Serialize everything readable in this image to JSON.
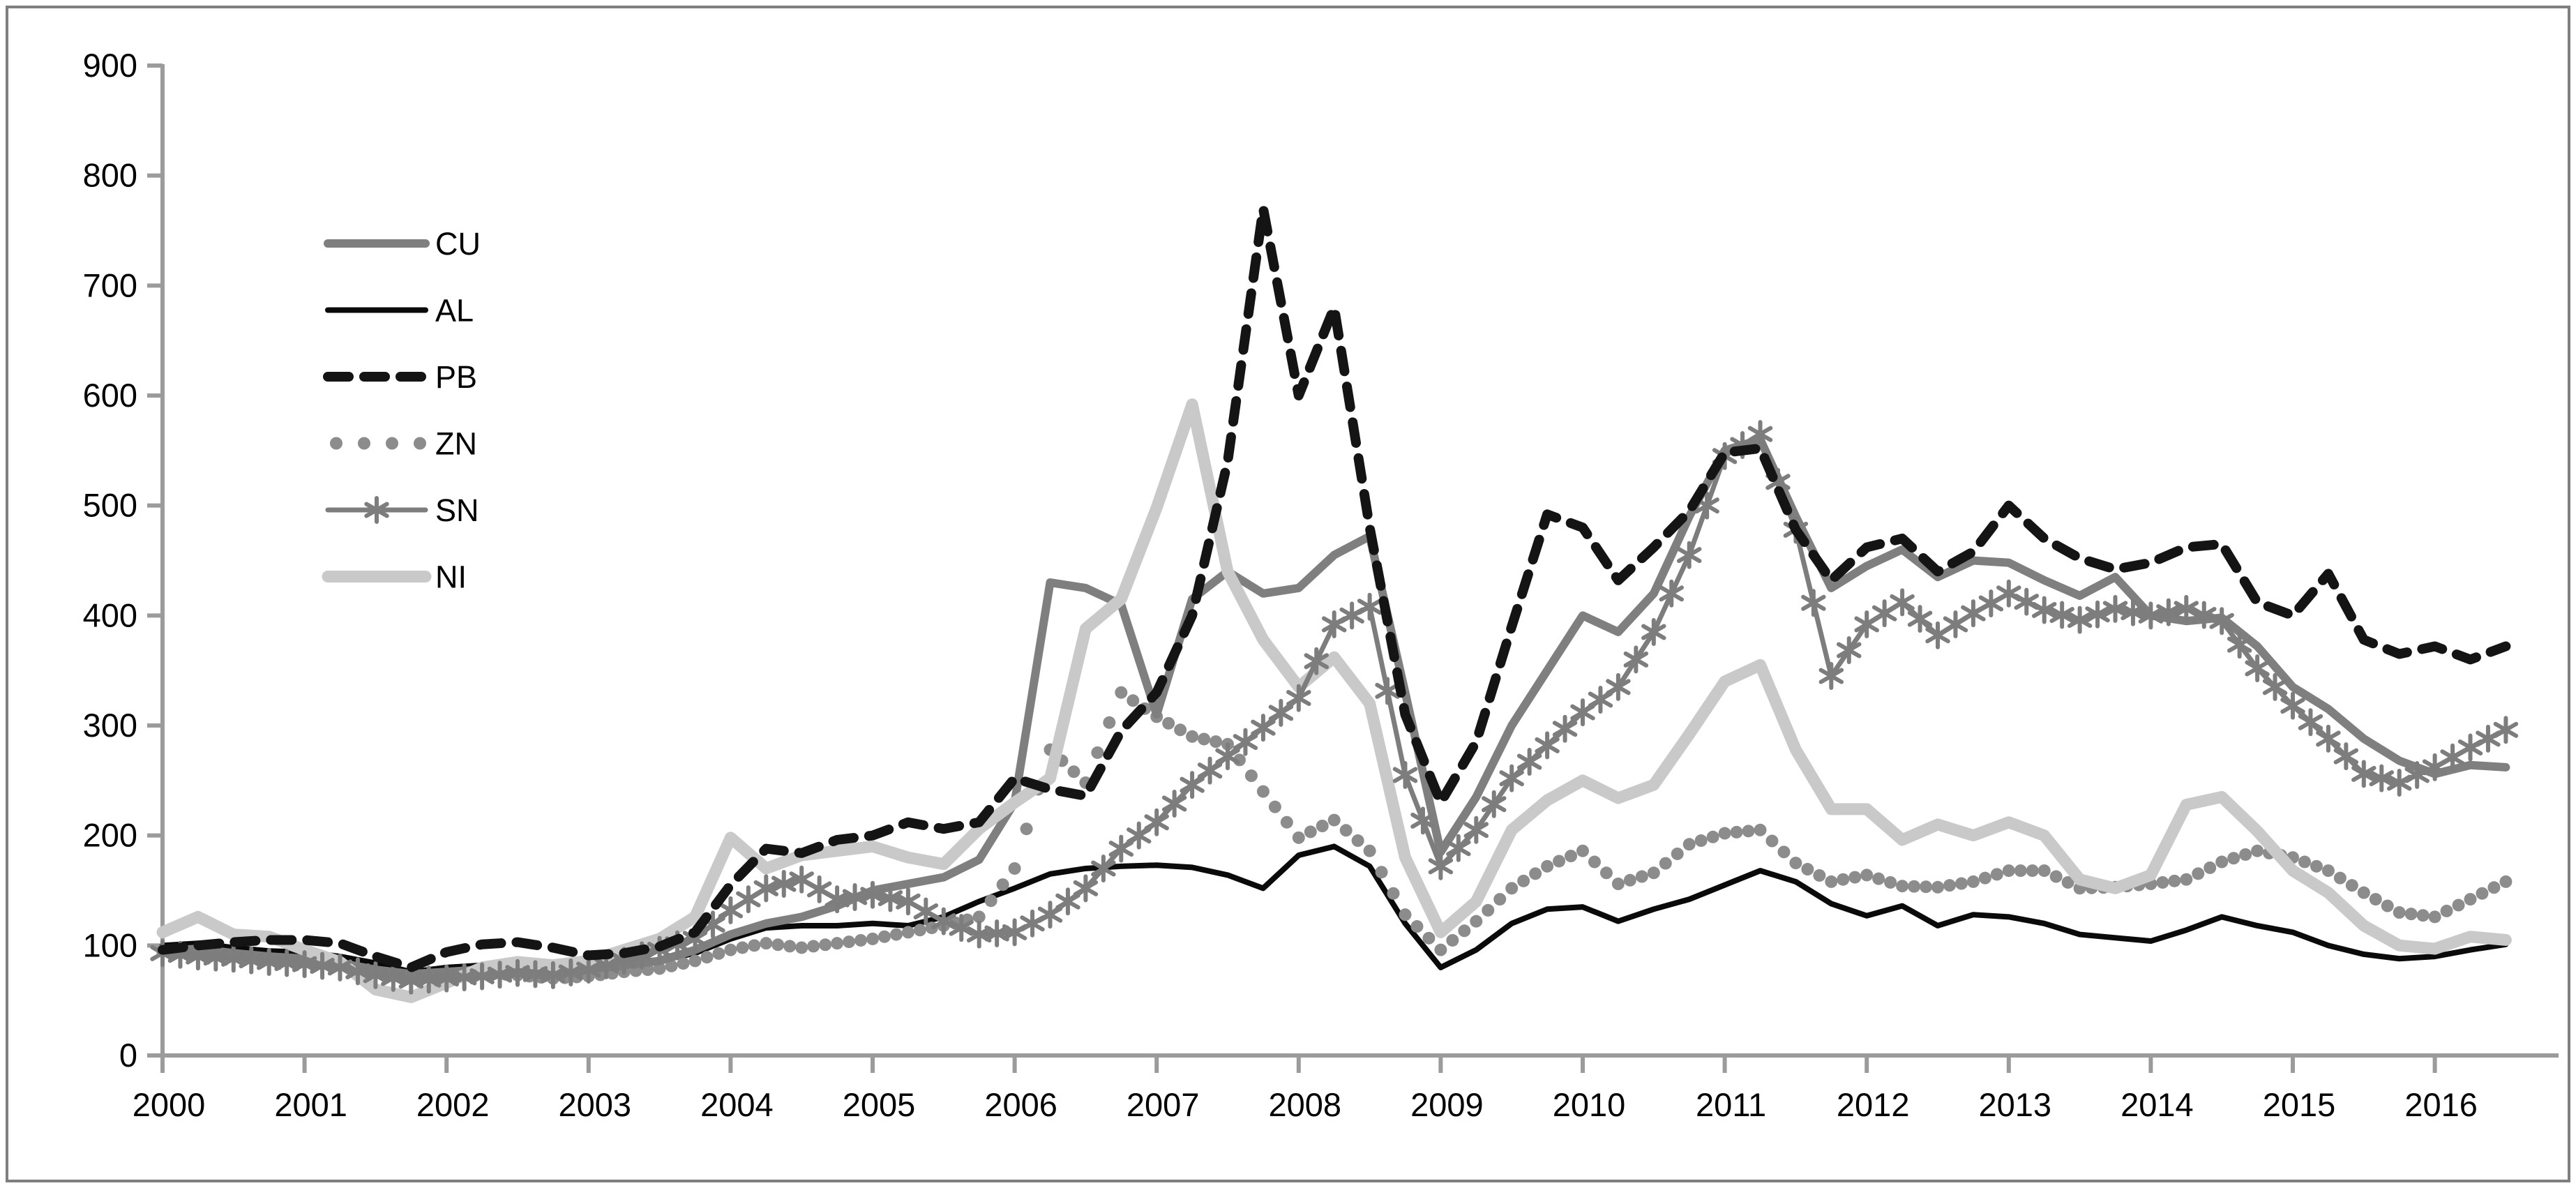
{
  "chart_data": {
    "type": "line",
    "title": "",
    "xlabel": "",
    "ylabel": "",
    "ylim": [
      0,
      900
    ],
    "xlim": [
      2000,
      2016.6
    ],
    "grid": false,
    "legend_position": "upper-left-inside",
    "y_ticks": [
      0,
      100,
      200,
      300,
      400,
      500,
      600,
      700,
      800,
      900
    ],
    "x_ticks": [
      2000,
      2001,
      2002,
      2003,
      2004,
      2005,
      2006,
      2007,
      2008,
      2009,
      2010,
      2011,
      2012,
      2013,
      2014,
      2015,
      2016
    ],
    "x": [
      2000.0,
      2000.25,
      2000.5,
      2000.75,
      2001.0,
      2001.25,
      2001.5,
      2001.75,
      2002.0,
      2002.25,
      2002.5,
      2002.75,
      2003.0,
      2003.25,
      2003.5,
      2003.75,
      2004.0,
      2004.25,
      2004.5,
      2004.75,
      2005.0,
      2005.25,
      2005.5,
      2005.75,
      2006.0,
      2006.25,
      2006.5,
      2006.75,
      2007.0,
      2007.25,
      2007.5,
      2007.75,
      2008.0,
      2008.25,
      2008.5,
      2008.75,
      2009.0,
      2009.25,
      2009.5,
      2009.75,
      2010.0,
      2010.25,
      2010.5,
      2010.75,
      2011.0,
      2011.25,
      2011.5,
      2011.75,
      2012.0,
      2012.25,
      2012.5,
      2012.75,
      2013.0,
      2013.25,
      2013.5,
      2013.75,
      2014.0,
      2014.25,
      2014.5,
      2014.75,
      2015.0,
      2015.25,
      2015.5,
      2015.75,
      2016.0,
      2016.25,
      2016.5
    ],
    "series": [
      {
        "name": "CU",
        "color": "#7f7f7f",
        "style": "solid",
        "width": 12,
        "values": [
          95,
          97,
          93,
          90,
          88,
          84,
          78,
          74,
          76,
          78,
          76,
          75,
          78,
          82,
          86,
          96,
          110,
          120,
          126,
          136,
          150,
          156,
          162,
          178,
          230,
          430,
          425,
          410,
          310,
          415,
          440,
          420,
          425,
          455,
          472,
          330,
          185,
          235,
          300,
          350,
          400,
          385,
          420,
          490,
          550,
          560,
          490,
          425,
          445,
          460,
          435,
          450,
          448,
          432,
          418,
          435,
          400,
          395,
          398,
          372,
          335,
          315,
          288,
          268,
          256,
          264,
          262
        ]
      },
      {
        "name": "AL",
        "color": "#0a0a0a",
        "style": "solid",
        "width": 8,
        "values": [
          100,
          102,
          98,
          95,
          94,
          90,
          84,
          76,
          80,
          82,
          80,
          78,
          80,
          83,
          86,
          93,
          106,
          116,
          118,
          118,
          120,
          118,
          126,
          140,
          152,
          165,
          170,
          172,
          173,
          171,
          164,
          152,
          182,
          190,
          172,
          120,
          80,
          96,
          120,
          133,
          135,
          122,
          133,
          142,
          155,
          168,
          158,
          138,
          127,
          136,
          118,
          128,
          126,
          120,
          110,
          107,
          104,
          114,
          126,
          118,
          112,
          100,
          92,
          88,
          90,
          96,
          101
        ]
      },
      {
        "name": "PB",
        "color": "#141414",
        "style": "dashed",
        "width": 14,
        "values": [
          96,
          100,
          103,
          105,
          105,
          102,
          90,
          80,
          94,
          101,
          103,
          98,
          91,
          93,
          99,
          112,
          155,
          188,
          184,
          196,
          200,
          212,
          206,
          212,
          252,
          242,
          236,
          295,
          330,
          400,
          540,
          770,
          600,
          680,
          480,
          310,
          230,
          285,
          390,
          492,
          480,
          432,
          462,
          495,
          548,
          552,
          478,
          432,
          462,
          470,
          440,
          458,
          500,
          470,
          452,
          442,
          448,
          462,
          465,
          412,
          400,
          438,
          378,
          365,
          372,
          360,
          372
        ]
      },
      {
        "name": "ZN",
        "color": "#8c8c8c",
        "style": "dots",
        "width": 9,
        "values": [
          95,
          93,
          90,
          88,
          86,
          82,
          75,
          70,
          72,
          75,
          73,
          70,
          72,
          76,
          79,
          86,
          96,
          102,
          98,
          102,
          106,
          112,
          118,
          126,
          170,
          278,
          248,
          330,
          308,
          290,
          283,
          240,
          198,
          214,
          186,
          128,
          96,
          122,
          152,
          172,
          186,
          156,
          166,
          192,
          202,
          205,
          175,
          158,
          164,
          154,
          153,
          158,
          168,
          168,
          152,
          153,
          156,
          160,
          176,
          186,
          180,
          168,
          148,
          130,
          126,
          142,
          158
        ]
      },
      {
        "name": "SN",
        "color": "#7d7d7d",
        "style": "line-stars",
        "width": 7,
        "values": [
          93,
          90,
          88,
          85,
          83,
          80,
          73,
          68,
          70,
          72,
          75,
          73,
          78,
          86,
          96,
          106,
          132,
          152,
          160,
          142,
          146,
          140,
          122,
          110,
          112,
          128,
          152,
          188,
          212,
          246,
          272,
          298,
          325,
          392,
          408,
          255,
          172,
          205,
          252,
          282,
          312,
          335,
          385,
          455,
          545,
          565,
          478,
          345,
          392,
          412,
          382,
          402,
          420,
          405,
          396,
          406,
          400,
          406,
          395,
          352,
          318,
          288,
          256,
          248,
          262,
          280,
          296
        ]
      },
      {
        "name": "NI",
        "color": "#c9c9c9",
        "style": "solid",
        "width": 17,
        "values": [
          112,
          126,
          110,
          108,
          96,
          85,
          60,
          53,
          66,
          80,
          85,
          82,
          86,
          96,
          106,
          126,
          198,
          170,
          182,
          186,
          190,
          180,
          174,
          206,
          230,
          252,
          388,
          415,
          498,
          592,
          440,
          378,
          335,
          362,
          320,
          180,
          112,
          140,
          205,
          232,
          250,
          234,
          246,
          292,
          340,
          355,
          278,
          224,
          224,
          196,
          210,
          200,
          212,
          200,
          160,
          152,
          164,
          228,
          235,
          204,
          168,
          148,
          118,
          100,
          97,
          108,
          105
        ]
      }
    ],
    "legend": {
      "labels": [
        "CU",
        "AL",
        "PB",
        "ZN",
        "SN",
        "NI"
      ]
    },
    "axis_color": "#9b9b9b",
    "tick_label_color": "#000000"
  }
}
